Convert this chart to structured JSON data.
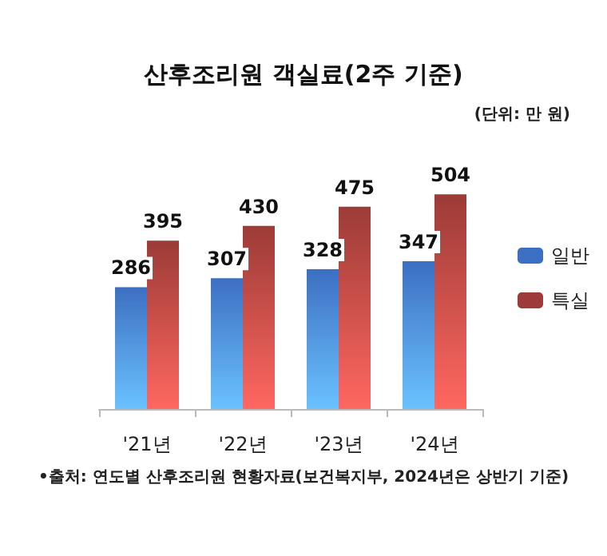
{
  "chart_data": {
    "type": "bar",
    "title": "산후조리원 객실료(2주 기준)",
    "subtitle": "(단위: 만 원)",
    "categories": [
      "'21년",
      "'22년",
      "'23년",
      "'24년"
    ],
    "series": [
      {
        "name": "일반",
        "color": "#3d6fc2",
        "values": [
          286,
          307,
          328,
          347
        ]
      },
      {
        "name": "특실",
        "color": "#9c3b37",
        "values": [
          395,
          430,
          475,
          504
        ]
      }
    ],
    "data_labels": true,
    "legend": "right",
    "annotations": [
      "•출처: 연도별 산후조리원 현황자료(보건복지부, 2024년은 상반기 기준)"
    ]
  }
}
